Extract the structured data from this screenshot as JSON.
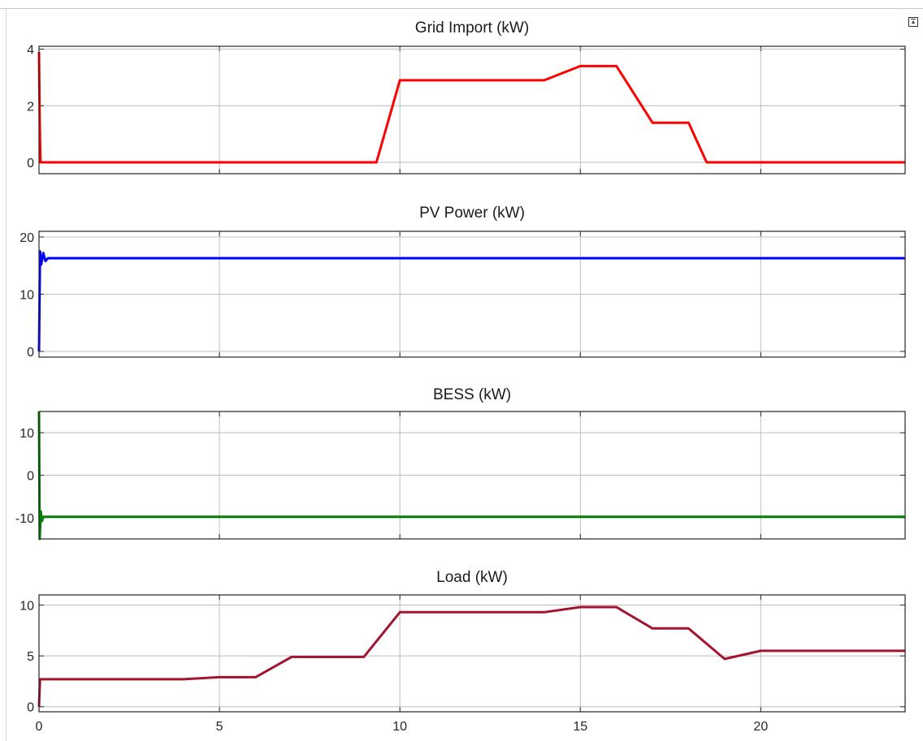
{
  "chart_data": [
    {
      "type": "line",
      "title": "Grid Import (kW)",
      "xlim": [
        0,
        24
      ],
      "ylim": [
        -0.4,
        4.1
      ],
      "yticks": [
        0,
        2,
        4
      ],
      "xticks": [
        0,
        5,
        10,
        15,
        20
      ],
      "grid": true,
      "color": "#ff0000",
      "series": [
        {
          "x": [
            0,
            0.02,
            0.04,
            9.35,
            10,
            14,
            15,
            16,
            17,
            18,
            18.5,
            24
          ],
          "y": [
            3.9,
            1.5,
            0,
            0,
            2.9,
            2.9,
            3.4,
            3.4,
            1.4,
            1.4,
            0,
            0
          ]
        }
      ]
    },
    {
      "type": "line",
      "title": "PV Power (kW)",
      "xlim": [
        0,
        24
      ],
      "ylim": [
        -1,
        21
      ],
      "yticks": [
        0,
        10,
        20
      ],
      "xticks": [
        0,
        5,
        10,
        15,
        20
      ],
      "grid": true,
      "color": "#0000ff",
      "series": [
        {
          "x": [
            0,
            0.03,
            0.06,
            0.12,
            0.18,
            0.25,
            24
          ],
          "y": [
            0,
            17.5,
            15.2,
            17.2,
            15.8,
            16.3,
            16.3
          ]
        }
      ]
    },
    {
      "type": "line",
      "title": "BESS (kW)",
      "xlim": [
        0,
        24
      ],
      "ylim": [
        -15,
        15
      ],
      "yticks": [
        -10,
        0,
        10
      ],
      "xticks": [
        0,
        5,
        10,
        15,
        20
      ],
      "grid": true,
      "color": "#008000",
      "series": [
        {
          "x": [
            0,
            0.02,
            0.05,
            0.08,
            0.12,
            24
          ],
          "y": [
            15,
            -15,
            -8.5,
            -10.8,
            -9.8,
            -9.8
          ]
        }
      ]
    },
    {
      "type": "line",
      "title": "Load (kW)",
      "xlim": [
        0,
        24
      ],
      "ylim": [
        -0.5,
        11
      ],
      "yticks": [
        0,
        5,
        10
      ],
      "xticks": [
        0,
        5,
        10,
        15,
        20
      ],
      "grid": true,
      "color": "#a2142f",
      "series": [
        {
          "x": [
            0,
            0.03,
            4,
            5,
            6,
            7,
            9,
            10,
            14,
            15,
            16,
            17,
            18,
            19,
            20,
            24
          ],
          "y": [
            0,
            2.7,
            2.7,
            2.9,
            2.9,
            4.9,
            4.9,
            9.3,
            9.3,
            9.8,
            9.8,
            7.7,
            7.7,
            4.7,
            5.5,
            5.5
          ]
        }
      ]
    }
  ]
}
